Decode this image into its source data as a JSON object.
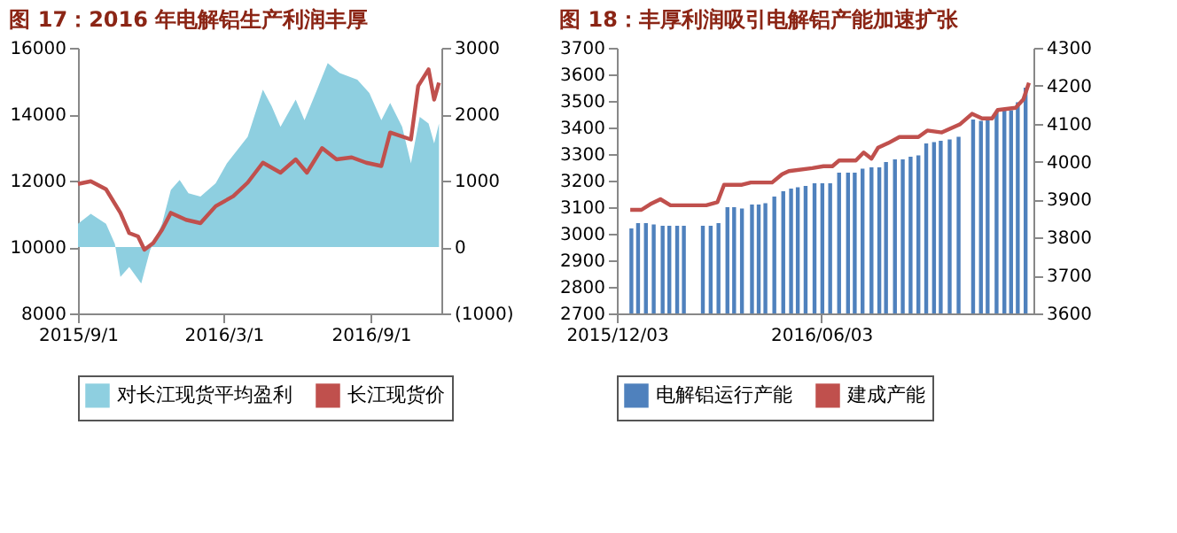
{
  "chart_data": [
    {
      "type": "line",
      "title": "图 17：2016 年电解铝生产利润丰厚",
      "legend": "bottom",
      "xlim": [
        "2015-09-01",
        "2016-11-28"
      ],
      "xticks": [
        {
          "value": "2015-09-01",
          "label": "2015/9/1"
        },
        {
          "value": "2016-03-01",
          "label": "2016/3/1"
        },
        {
          "value": "2016-09-01",
          "label": "2016/9/1"
        }
      ],
      "ylim": [
        8000,
        16000
      ],
      "yticks": [
        8000,
        10000,
        12000,
        14000,
        16000
      ],
      "y2lim": [
        -1000,
        3000
      ],
      "y2ticks": [
        {
          "value": -1000,
          "label": "(1000)"
        },
        0,
        1000,
        2000,
        3000
      ],
      "series": [
        {
          "name": "对长江现货平均盈利",
          "type": "area",
          "axis": "y2",
          "color": "#8ecfe0",
          "x": [
            "2015-09-01",
            "2015-09-17",
            "2015-10-06",
            "2015-10-17",
            "2015-10-24",
            "2015-11-04",
            "2015-11-19",
            "2015-11-30",
            "2015-12-15",
            "2015-12-26",
            "2016-01-06",
            "2016-01-17",
            "2016-02-01",
            "2016-02-20",
            "2016-03-05",
            "2016-03-31",
            "2016-04-19",
            "2016-04-30",
            "2016-05-11",
            "2016-05-30",
            "2016-06-10",
            "2016-06-24",
            "2016-07-09",
            "2016-07-24",
            "2016-08-15",
            "2016-08-30",
            "2016-09-14",
            "2016-09-25",
            "2016-10-10",
            "2016-10-21",
            "2016-11-01",
            "2016-11-12",
            "2016-11-19",
            "2016-11-25"
          ],
          "values": [
            350,
            500,
            350,
            50,
            -450,
            -300,
            -550,
            -50,
            350,
            860,
            1010,
            810,
            760,
            960,
            1260,
            1660,
            2370,
            2120,
            1810,
            2220,
            1910,
            2320,
            2770,
            2620,
            2520,
            2320,
            1910,
            2170,
            1810,
            1260,
            1960,
            1860,
            1560,
            1860
          ]
        },
        {
          "name": "长江现货价",
          "axis": "y",
          "color": "#c0504d",
          "x": [
            "2015-09-01",
            "2015-09-17",
            "2015-10-06",
            "2015-10-24",
            "2015-11-04",
            "2015-11-15",
            "2015-11-23",
            "2015-12-04",
            "2015-12-15",
            "2015-12-26",
            "2016-01-14",
            "2016-02-01",
            "2016-02-20",
            "2016-03-13",
            "2016-03-31",
            "2016-04-19",
            "2016-05-11",
            "2016-05-30",
            "2016-06-13",
            "2016-07-02",
            "2016-07-20",
            "2016-08-08",
            "2016-08-26",
            "2016-09-14",
            "2016-09-25",
            "2016-10-21",
            "2016-10-30",
            "2016-11-12",
            "2016-11-19",
            "2016-11-25"
          ],
          "values": [
            11900,
            11980,
            11740,
            11030,
            10420,
            10320,
            9920,
            10120,
            10520,
            11030,
            10820,
            10720,
            11230,
            11530,
            11940,
            12540,
            12240,
            12640,
            12240,
            12980,
            12640,
            12700,
            12540,
            12440,
            13450,
            13240,
            14850,
            15350,
            14440,
            14950
          ]
        }
      ]
    },
    {
      "type": "bar",
      "title": "图 18：丰厚利润吸引电解铝产能加速扩张",
      "legend": "bottom",
      "xlim": [
        "2015-12-03",
        "2016-12-10"
      ],
      "xticks": [
        {
          "value": "2015-12-03",
          "label": "2015/12/03"
        },
        {
          "value": "2016-06-03",
          "label": "2016/06/03"
        }
      ],
      "ylim": [
        2700,
        3700
      ],
      "yticks": [
        2700,
        2800,
        2900,
        3000,
        3100,
        3200,
        3300,
        3400,
        3500,
        3600,
        3700
      ],
      "y2lim": [
        3600,
        4300
      ],
      "y2ticks": [
        3600,
        3700,
        3800,
        3900,
        4000,
        4100,
        4200,
        4300
      ],
      "series": [
        {
          "name": "电解铝运行产能",
          "axis": "y",
          "color": "#4f81bd",
          "x": [
            "2015-12-16",
            "2015-12-22",
            "2015-12-29",
            "2016-01-05",
            "2016-01-13",
            "2016-01-19",
            "2016-01-26",
            "2016-02-01",
            "2016-02-18",
            "2016-02-25",
            "2016-03-03",
            "2016-03-11",
            "2016-03-17",
            "2016-03-24",
            "2016-04-02",
            "2016-04-08",
            "2016-04-14",
            "2016-04-22",
            "2016-04-30",
            "2016-05-07",
            "2016-05-13",
            "2016-05-20",
            "2016-05-28",
            "2016-06-04",
            "2016-06-11",
            "2016-06-19",
            "2016-06-27",
            "2016-07-03",
            "2016-07-10",
            "2016-07-18",
            "2016-07-25",
            "2016-07-31",
            "2016-08-08",
            "2016-08-15",
            "2016-08-22",
            "2016-08-29",
            "2016-09-05",
            "2016-09-12",
            "2016-09-18",
            "2016-09-26",
            "2016-10-04",
            "2016-10-17",
            "2016-10-24",
            "2016-10-30",
            "2016-11-07",
            "2016-11-14",
            "2016-11-20",
            "2016-11-26",
            "2016-12-03"
          ],
          "values": [
            3020,
            3040,
            3040,
            3035,
            3030,
            3030,
            3030,
            3030,
            3030,
            3030,
            3040,
            3100,
            3100,
            3095,
            3110,
            3110,
            3115,
            3140,
            3160,
            3170,
            3175,
            3180,
            3190,
            3190,
            3190,
            3230,
            3230,
            3230,
            3245,
            3250,
            3250,
            3270,
            3280,
            3280,
            3290,
            3295,
            3340,
            3345,
            3350,
            3355,
            3365,
            3430,
            3425,
            3430,
            3460,
            3465,
            3465,
            3495,
            3550
          ]
        },
        {
          "name": "建成产能",
          "type": "line",
          "axis": "y2",
          "color": "#c0504d",
          "x": [
            "2015-12-15",
            "2015-12-25",
            "2016-01-02",
            "2016-01-11",
            "2016-01-20",
            "2016-02-21",
            "2016-03-02",
            "2016-03-08",
            "2016-03-24",
            "2016-04-01",
            "2016-04-20",
            "2016-04-29",
            "2016-05-05",
            "2016-05-26",
            "2016-06-05",
            "2016-06-13",
            "2016-06-19",
            "2016-07-04",
            "2016-07-11",
            "2016-07-18",
            "2016-07-24",
            "2016-08-02",
            "2016-08-12",
            "2016-08-29",
            "2016-09-06",
            "2016-09-19",
            "2016-10-05",
            "2016-10-16",
            "2016-10-25",
            "2016-11-03",
            "2016-11-08",
            "2016-11-24",
            "2016-12-01",
            "2016-12-06"
          ],
          "values": [
            3873,
            3873,
            3888,
            3901,
            3885,
            3885,
            3893,
            3939,
            3939,
            3945,
            3945,
            3967,
            3975,
            3983,
            3988,
            3988,
            4003,
            4003,
            4024,
            4008,
            4037,
            4049,
            4065,
            4065,
            4082,
            4077,
            4098,
            4126,
            4114,
            4114,
            4136,
            4142,
            4164,
            4208
          ]
        }
      ]
    }
  ]
}
